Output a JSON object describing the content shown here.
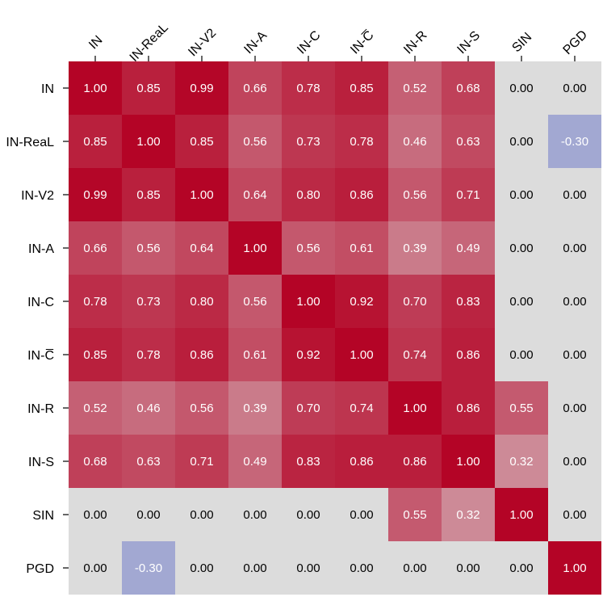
{
  "chart_data": {
    "type": "heatmap",
    "title": "",
    "xlabel": "",
    "ylabel": "",
    "x_tick_labels": [
      "IN",
      "IN-ReaL",
      "IN-V2",
      "IN-A",
      "IN-C",
      "IN-C̅",
      "IN-R",
      "IN-S",
      "SIN",
      "PGD"
    ],
    "y_tick_labels": [
      "IN",
      "IN-ReaL",
      "IN-V2",
      "IN-A",
      "IN-C",
      "IN-C̅",
      "IN-R",
      "IN-S",
      "SIN",
      "PGD"
    ],
    "values": [
      [
        1.0,
        0.85,
        0.99,
        0.66,
        0.78,
        0.85,
        0.52,
        0.68,
        0.0,
        0.0
      ],
      [
        0.85,
        1.0,
        0.85,
        0.56,
        0.73,
        0.78,
        0.46,
        0.63,
        0.0,
        -0.3
      ],
      [
        0.99,
        0.85,
        1.0,
        0.64,
        0.8,
        0.86,
        0.56,
        0.71,
        0.0,
        0.0
      ],
      [
        0.66,
        0.56,
        0.64,
        1.0,
        0.56,
        0.61,
        0.39,
        0.49,
        0.0,
        0.0
      ],
      [
        0.78,
        0.73,
        0.8,
        0.56,
        1.0,
        0.92,
        0.7,
        0.83,
        0.0,
        0.0
      ],
      [
        0.85,
        0.78,
        0.86,
        0.61,
        0.92,
        1.0,
        0.74,
        0.86,
        0.0,
        0.0
      ],
      [
        0.52,
        0.46,
        0.56,
        0.39,
        0.7,
        0.74,
        1.0,
        0.86,
        0.55,
        0.0
      ],
      [
        0.68,
        0.63,
        0.71,
        0.49,
        0.83,
        0.86,
        0.86,
        1.0,
        0.32,
        0.0
      ],
      [
        0.0,
        0.0,
        0.0,
        0.0,
        0.0,
        0.0,
        0.55,
        0.32,
        1.0,
        0.0
      ],
      [
        0.0,
        -0.3,
        0.0,
        0.0,
        0.0,
        0.0,
        0.0,
        0.0,
        0.0,
        1.0
      ]
    ],
    "value_format": "2 decimals",
    "colormap": "coolwarm",
    "color_range": [
      -1.0,
      1.0
    ],
    "zero_color": "#dcdcdc",
    "positive_color": "#b40426",
    "negative_color": "#3b4cc0",
    "grid": false
  }
}
